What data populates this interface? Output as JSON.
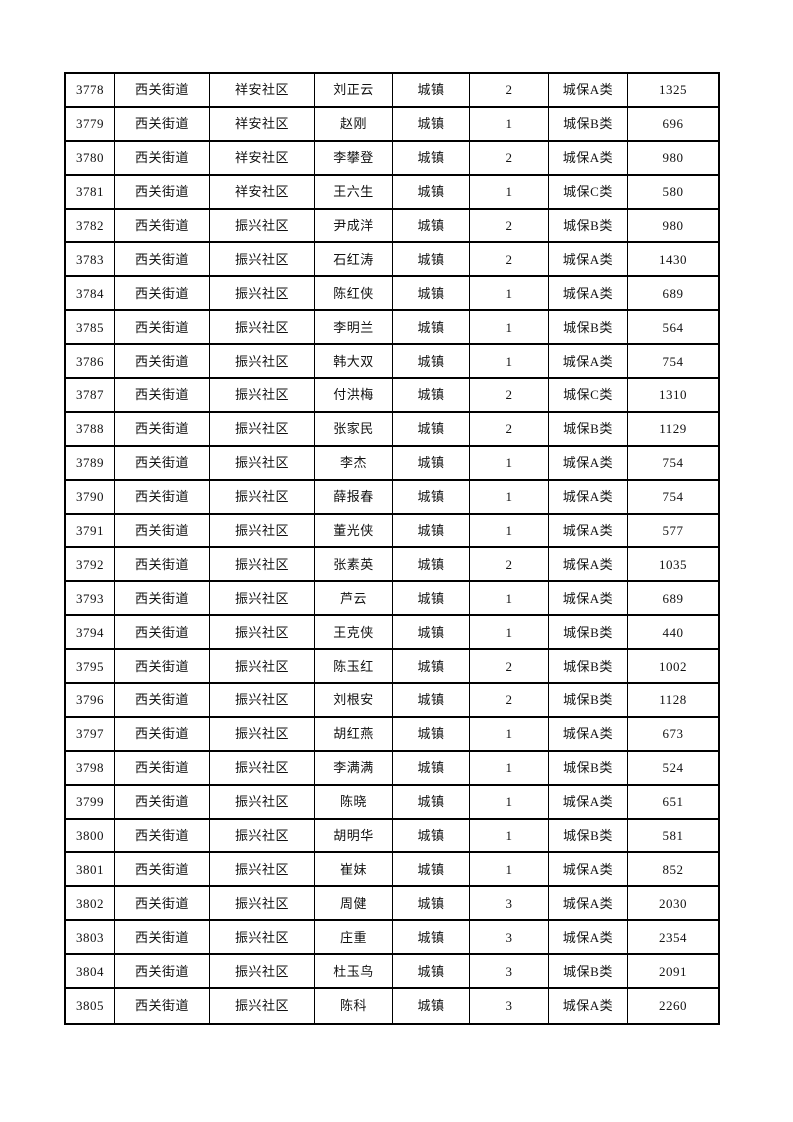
{
  "page": {
    "background_color": "#ffffff",
    "text_color": "#111111",
    "grid_line_color": "#000000"
  },
  "table": {
    "rows": [
      [
        "3778",
        "西关街道",
        "祥安社区",
        "刘正云",
        "城镇",
        "2",
        "城保A类",
        "1325"
      ],
      [
        "3779",
        "西关街道",
        "祥安社区",
        "赵刚",
        "城镇",
        "1",
        "城保B类",
        "696"
      ],
      [
        "3780",
        "西关街道",
        "祥安社区",
        "李攀登",
        "城镇",
        "2",
        "城保A类",
        "980"
      ],
      [
        "3781",
        "西关街道",
        "祥安社区",
        "王六生",
        "城镇",
        "1",
        "城保C类",
        "580"
      ],
      [
        "3782",
        "西关街道",
        "振兴社区",
        "尹成洋",
        "城镇",
        "2",
        "城保B类",
        "980"
      ],
      [
        "3783",
        "西关街道",
        "振兴社区",
        "石红涛",
        "城镇",
        "2",
        "城保A类",
        "1430"
      ],
      [
        "3784",
        "西关街道",
        "振兴社区",
        "陈红侠",
        "城镇",
        "1",
        "城保A类",
        "689"
      ],
      [
        "3785",
        "西关街道",
        "振兴社区",
        "李明兰",
        "城镇",
        "1",
        "城保B类",
        "564"
      ],
      [
        "3786",
        "西关街道",
        "振兴社区",
        "韩大双",
        "城镇",
        "1",
        "城保A类",
        "754"
      ],
      [
        "3787",
        "西关街道",
        "振兴社区",
        "付洪梅",
        "城镇",
        "2",
        "城保C类",
        "1310"
      ],
      [
        "3788",
        "西关街道",
        "振兴社区",
        "张家民",
        "城镇",
        "2",
        "城保B类",
        "1129"
      ],
      [
        "3789",
        "西关街道",
        "振兴社区",
        "李杰",
        "城镇",
        "1",
        "城保A类",
        "754"
      ],
      [
        "3790",
        "西关街道",
        "振兴社区",
        "薛报春",
        "城镇",
        "1",
        "城保A类",
        "754"
      ],
      [
        "3791",
        "西关街道",
        "振兴社区",
        "董光侠",
        "城镇",
        "1",
        "城保A类",
        "577"
      ],
      [
        "3792",
        "西关街道",
        "振兴社区",
        "张素英",
        "城镇",
        "2",
        "城保A类",
        "1035"
      ],
      [
        "3793",
        "西关街道",
        "振兴社区",
        "芦云",
        "城镇",
        "1",
        "城保A类",
        "689"
      ],
      [
        "3794",
        "西关街道",
        "振兴社区",
        "王克侠",
        "城镇",
        "1",
        "城保B类",
        "440"
      ],
      [
        "3795",
        "西关街道",
        "振兴社区",
        "陈玉红",
        "城镇",
        "2",
        "城保B类",
        "1002"
      ],
      [
        "3796",
        "西关街道",
        "振兴社区",
        "刘根安",
        "城镇",
        "2",
        "城保B类",
        "1128"
      ],
      [
        "3797",
        "西关街道",
        "振兴社区",
        "胡红燕",
        "城镇",
        "1",
        "城保A类",
        "673"
      ],
      [
        "3798",
        "西关街道",
        "振兴社区",
        "李满满",
        "城镇",
        "1",
        "城保B类",
        "524"
      ],
      [
        "3799",
        "西关街道",
        "振兴社区",
        "陈晓",
        "城镇",
        "1",
        "城保A类",
        "651"
      ],
      [
        "3800",
        "西关街道",
        "振兴社区",
        "胡明华",
        "城镇",
        "1",
        "城保B类",
        "581"
      ],
      [
        "3801",
        "西关街道",
        "振兴社区",
        "崔妹",
        "城镇",
        "1",
        "城保A类",
        "852"
      ],
      [
        "3802",
        "西关街道",
        "振兴社区",
        "周健",
        "城镇",
        "3",
        "城保A类",
        "2030"
      ],
      [
        "3803",
        "西关街道",
        "振兴社区",
        "庄重",
        "城镇",
        "3",
        "城保A类",
        "2354"
      ],
      [
        "3804",
        "西关街道",
        "振兴社区",
        "杜玉鸟",
        "城镇",
        "3",
        "城保B类",
        "2091"
      ],
      [
        "3805",
        "西关街道",
        "振兴社区",
        "陈科",
        "城镇",
        "3",
        "城保A类",
        "2260"
      ]
    ]
  }
}
